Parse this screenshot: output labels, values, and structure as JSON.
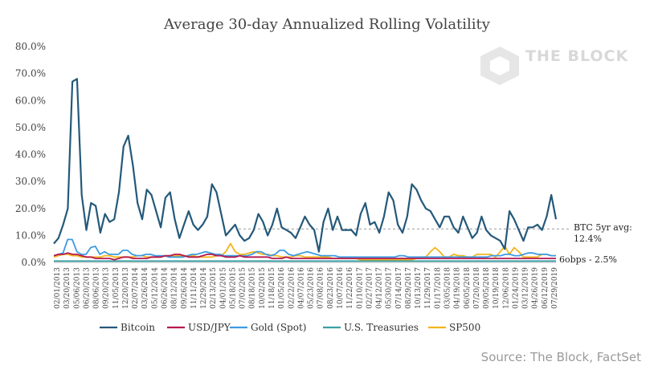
{
  "chart_data": {
    "type": "line",
    "title": "Average 30-day Annualized Rolling Volatility",
    "xlabel": "",
    "ylabel": "",
    "ylim": [
      0,
      80
    ],
    "y_ticks": [
      "0.0%",
      "10.0%",
      "20.0%",
      "30.0%",
      "40.0%",
      "50.0%",
      "60.0%",
      "70.0%",
      "80.0%"
    ],
    "grid": false,
    "legend": "bottom",
    "x_ticks": [
      "02/01/2013",
      "03/20/2013",
      "05/06/2013",
      "06/20/2013",
      "08/06/2013",
      "09/20/2013",
      "11/05/2013",
      "12/20/2013",
      "02/07/2014",
      "03/26/2014",
      "05/12/2014",
      "06/26/2014",
      "08/12/2014",
      "09/26/2014",
      "11/11/2014",
      "12/29/2014",
      "02/13/2015",
      "04/01/2015",
      "05/18/2015",
      "07/02/2015",
      "08/18/2015",
      "10/02/2015",
      "11/18/2015",
      "01/05/2016",
      "02/22/2016",
      "04/07/2016",
      "05/23/2016",
      "07/08/2016",
      "08/23/2016",
      "10/07/2016",
      "11/22/2016",
      "01/10/2017",
      "02/27/2017",
      "04/12/2017",
      "05/30/2017",
      "07/14/2017",
      "08/29/2017",
      "10/13/2017",
      "11/29/2017",
      "01/17/2018",
      "03/05/2018",
      "04/19/2018",
      "06/05/2018",
      "07/20/2018",
      "09/05/2018",
      "10/19/2018",
      "12/06/2018",
      "01/24/2019",
      "03/12/2019",
      "04/26/2019",
      "06/12/2019",
      "07/29/2019"
    ],
    "series": [
      {
        "name": "Bitcoin",
        "color": "#24597a",
        "values": [
          7,
          9,
          14,
          20,
          67,
          68,
          25,
          12,
          22,
          21,
          11,
          18,
          15,
          16,
          26,
          43,
          47,
          36,
          22,
          16,
          27,
          25,
          19,
          13,
          24,
          26,
          16,
          9,
          14,
          19,
          14,
          12,
          14,
          17,
          29,
          26,
          18,
          10,
          12,
          14,
          10,
          8,
          9,
          12,
          18,
          15,
          10,
          14,
          20,
          13,
          12,
          11,
          9,
          13,
          17,
          14,
          12,
          4,
          15,
          20,
          12,
          17,
          12,
          12,
          12,
          10,
          18,
          22,
          14,
          15,
          11,
          17,
          26,
          23,
          14,
          11,
          17,
          29,
          27,
          23,
          20,
          19,
          16,
          13,
          17,
          17,
          13,
          11,
          17,
          13,
          9,
          11,
          17,
          12,
          10,
          9,
          8,
          5,
          19,
          16,
          12,
          8,
          13,
          13,
          14,
          12,
          17,
          25,
          16
        ]
      },
      {
        "name": "USD/JPY",
        "color": "#b5184f",
        "values": [
          2.5,
          3,
          3,
          3.5,
          3,
          3,
          2.5,
          2,
          2,
          1.5,
          1.5,
          1.5,
          1.5,
          1,
          1.5,
          2,
          2,
          1.5,
          1.5,
          1.5,
          1.5,
          2,
          2,
          2,
          2.5,
          2.5,
          3,
          3,
          2.5,
          2,
          2,
          2,
          2.5,
          3,
          3,
          2.5,
          2.5,
          2,
          2,
          2,
          2.5,
          2,
          2,
          2,
          2,
          2,
          2,
          1.5,
          1.5,
          1.5,
          2,
          1.5,
          1.5,
          1.5,
          1.5,
          1.5,
          1.5,
          1.5,
          1.5,
          1.5,
          1.5,
          1.5,
          1.5,
          1.5,
          1.5,
          1.5,
          1.5,
          1.5,
          1.5,
          1.5,
          1.5,
          1.5,
          1.5,
          1.5,
          1.5,
          1.5,
          1.5,
          1.5,
          1.5,
          1.5,
          1.5,
          1.5,
          1.5,
          1.5,
          1.5,
          1.5,
          1.5,
          1.5,
          1.5,
          1.5,
          1.5,
          1.5,
          1.5,
          1.5,
          1.5,
          1.5,
          1.5,
          1.5,
          1.5,
          1.5,
          1.5,
          1.5,
          1.5,
          1.5,
          1.5,
          1.5,
          1.5,
          1.5,
          1.5
        ]
      },
      {
        "name": "Gold (Spot)",
        "color": "#3d9be0",
        "values": [
          2.5,
          3,
          3.5,
          8.5,
          8.5,
          4,
          3,
          3,
          5.5,
          6,
          3,
          4,
          3,
          3,
          3,
          4.5,
          4.5,
          3,
          2.5,
          2.5,
          3,
          3,
          2.5,
          2.5,
          2.5,
          2,
          2,
          2,
          2,
          2.5,
          3,
          3,
          3.5,
          4,
          3.5,
          3,
          3,
          2.5,
          2.5,
          2.5,
          2.5,
          2.5,
          2.5,
          3,
          4,
          4,
          3,
          2.5,
          3,
          4.5,
          4.5,
          3,
          2.5,
          3,
          3.5,
          4,
          3.5,
          3,
          2.5,
          2.5,
          2.5,
          2.5,
          2,
          2,
          2,
          2,
          2,
          2,
          2,
          2,
          2,
          2,
          2,
          2,
          2,
          2.5,
          2.5,
          2,
          2,
          2,
          2,
          2,
          2,
          2,
          2,
          2,
          2,
          2,
          2,
          2,
          2,
          2,
          2,
          2,
          2,
          2.5,
          2.5,
          2.5,
          3,
          3,
          2.5,
          2.5,
          3,
          3.5,
          3.5,
          3,
          3,
          3,
          2.5,
          2.5
        ]
      },
      {
        "name": "U.S. Treasuries",
        "color": "#3a9ea5",
        "values": [
          0.5,
          0.5,
          0.5,
          0.5,
          0.5,
          0.5,
          0.5,
          0.5,
          0.5,
          0.5,
          0.5,
          0.5,
          0.5,
          0.5,
          0.5,
          0.5,
          0.5,
          0.5,
          0.5,
          0.5,
          0.5,
          0.5,
          0.5,
          0.5,
          0.5,
          0.5,
          0.5,
          0.5,
          0.5,
          0.5,
          0.5,
          0.5,
          0.5,
          0.5,
          0.5,
          0.5,
          0.5,
          0.5,
          0.5,
          0.5,
          0.5,
          0.5,
          0.5,
          0.5,
          0.5,
          0.5,
          0.5,
          0.5,
          0.5,
          0.5,
          0.5,
          0.5,
          0.5,
          0.5,
          0.5,
          0.5,
          0.5,
          0.5,
          0.5,
          0.5,
          0.5,
          0.5,
          0.5,
          0.5,
          0.5,
          0.5,
          0.5,
          0.5,
          0.5,
          0.5,
          0.5,
          0.5,
          0.5,
          0.5,
          0.5,
          0.5,
          0.5,
          0.5,
          0.5,
          0.5,
          0.5,
          0.5,
          0.5,
          0.5,
          0.5,
          0.5,
          0.5,
          0.5,
          0.5,
          0.5,
          0.5,
          0.5,
          0.5,
          0.5,
          0.5,
          0.5,
          0.5,
          0.5,
          0.5,
          0.5,
          0.5,
          0.5,
          0.5,
          0.5,
          0.5,
          0.5,
          0.5,
          0.5,
          0.5
        ]
      },
      {
        "name": "SP500",
        "color": "#f2b51d",
        "values": [
          2,
          2.5,
          3,
          3,
          2.5,
          2.5,
          2,
          2,
          2,
          2,
          2,
          2.5,
          2.5,
          2,
          2,
          2,
          2,
          2,
          2.5,
          2.5,
          2,
          2,
          2,
          2,
          2.5,
          2.5,
          2.5,
          2.5,
          2.5,
          2.5,
          2.5,
          2,
          2,
          2,
          2,
          2.5,
          2.5,
          4,
          7,
          4,
          3,
          3,
          3.5,
          4,
          3.5,
          3,
          3,
          2.5,
          2.5,
          2,
          2,
          2,
          2.5,
          2.5,
          2,
          2,
          2,
          2,
          2,
          2,
          1.5,
          1.5,
          1.5,
          1.5,
          1.5,
          1.5,
          1,
          1,
          1,
          1,
          1,
          1,
          1,
          1,
          1,
          1,
          1,
          1,
          1.5,
          2,
          2,
          4,
          5.5,
          4,
          2,
          2,
          3,
          2.5,
          2.5,
          2,
          2,
          3,
          3,
          3,
          3,
          2,
          4,
          6,
          3,
          5.5,
          4,
          2,
          2,
          2,
          2,
          3,
          3,
          2.5,
          2.5
        ]
      }
    ],
    "reference_line": {
      "value": 12.4,
      "label": "BTC 5yr avg: 12.4%",
      "color": "#9a9a9a",
      "dash": "dashed"
    },
    "side_label": "6obps - 2.5%",
    "source": "Source: The Block, FactSet",
    "watermark": "THE BLOCK"
  }
}
